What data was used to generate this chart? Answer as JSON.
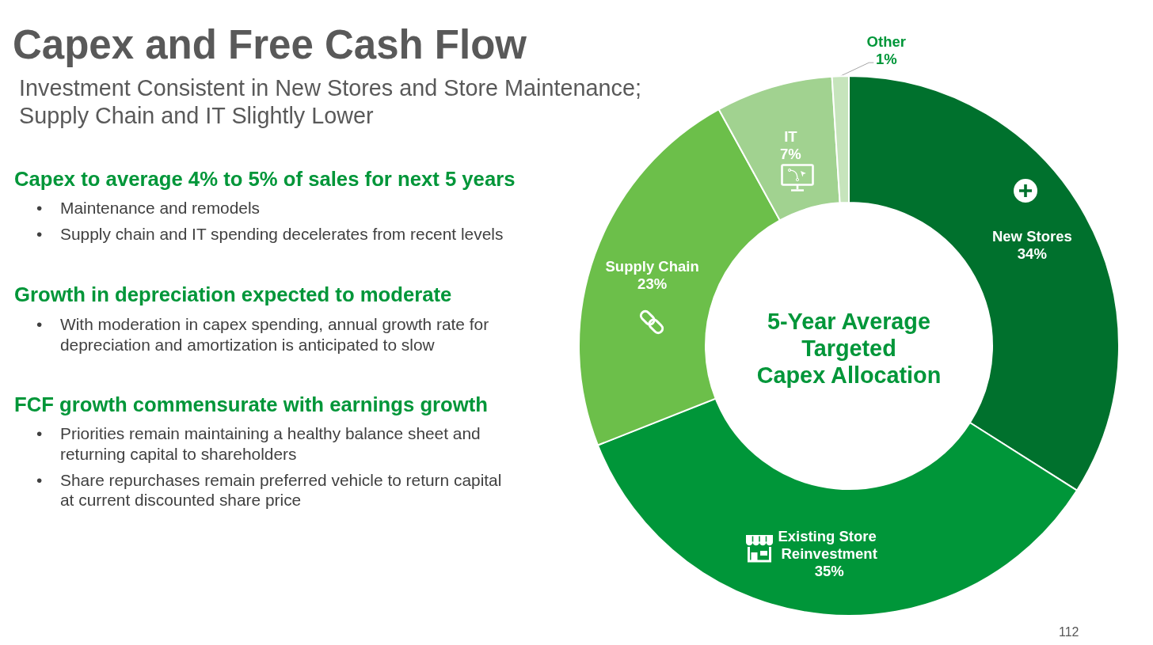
{
  "chart_data": {
    "type": "donut",
    "title": "Capex and Free Cash Flow",
    "subtitle": "Investment Consistent in New Stores and Store Maintenance; Supply Chain and IT Slightly Lower",
    "categories": [
      "New Stores",
      "Existing Store Reinvestment",
      "Supply Chain",
      "IT",
      "Other"
    ],
    "values": [
      34,
      35,
      23,
      7,
      1
    ],
    "colors": [
      "#00712d",
      "#009639",
      "#6cbf4a",
      "#a1d290",
      "#c6e4bc"
    ],
    "value_labels": [
      "34%",
      "35%",
      "23%",
      "7%",
      "1%"
    ],
    "annotations": [
      "5-Year Average\nTargeted\nCapex Allocation",
      "Capex to average 4% to 5% of sales for next 5 years",
      "• Maintenance and remodels",
      "• Supply chain and IT spending decelerates from recent levels",
      "Growth in depreciation expected to moderate",
      "• With moderation in capex spending, annual growth rate for depreciation and amortization is anticipated to slow",
      "FCF growth commensurate with earnings growth",
      "• Priorities remain maintaining a healthy balance sheet and returning capital to shareholders",
      "• Share repurchases remain preferred vehicle to return capital at current discounted share price",
      "112"
    ]
  }
}
